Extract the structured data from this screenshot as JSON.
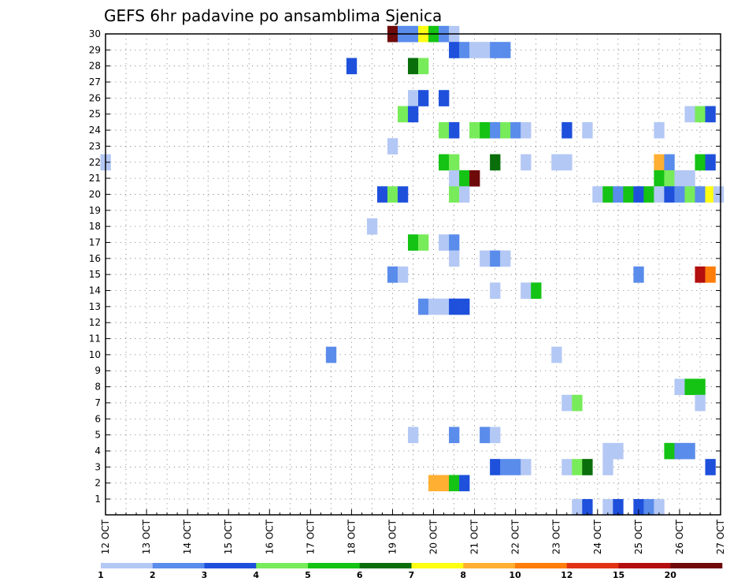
{
  "chart_data": {
    "type": "heatmap",
    "title": "GEFS 6hr padavine po ansamblima Sjenica",
    "x_ticks": [
      "12 OCT",
      "13 OCT",
      "14 OCT",
      "15 OCT",
      "16 OCT",
      "17 OCT",
      "18 OCT",
      "19 OCT",
      "20 OCT",
      "21 OCT",
      "22 OCT",
      "23 OCT",
      "24 OCT",
      "25 OCT",
      "26 OCT",
      "27 OCT"
    ],
    "y_ticks": [
      "1",
      "2",
      "3",
      "4",
      "5",
      "6",
      "7",
      "8",
      "9",
      "10",
      "11",
      "12",
      "13",
      "14",
      "15",
      "16",
      "17",
      "18",
      "19",
      "20",
      "21",
      "22",
      "23",
      "24",
      "25",
      "26",
      "27",
      "28",
      "29",
      "30"
    ],
    "xlim_days": [
      12,
      27
    ],
    "ylim_members": [
      0,
      30
    ],
    "step_hours": 6,
    "grid": true,
    "colorbar": {
      "placement": "bottom",
      "labels": [
        "1",
        "2",
        "3",
        "4",
        "5",
        "6",
        "7",
        "8",
        "10",
        "12",
        "15",
        "20"
      ],
      "colors": [
        "#b4c8f5",
        "#5a8ceb",
        "#1e50dc",
        "#78eb5a",
        "#14c314",
        "#0a6e0a",
        "#ffff14",
        "#ffaf32",
        "#ff7d0a",
        "#e13214",
        "#b40f0f",
        "#6e0a0a"
      ]
    },
    "cells": [
      {
        "member": 30,
        "day": 19.0,
        "cls": 12
      },
      {
        "member": 30,
        "day": 19.25,
        "cls": 2
      },
      {
        "member": 30,
        "day": 19.5,
        "cls": 2
      },
      {
        "member": 30,
        "day": 19.75,
        "cls": 7
      },
      {
        "member": 30,
        "day": 20.0,
        "cls": 5
      },
      {
        "member": 30,
        "day": 20.25,
        "cls": 2
      },
      {
        "member": 30,
        "day": 20.5,
        "cls": 1
      },
      {
        "member": 29,
        "day": 20.5,
        "cls": 3
      },
      {
        "member": 29,
        "day": 20.75,
        "cls": 2
      },
      {
        "member": 29,
        "day": 21.0,
        "cls": 1
      },
      {
        "member": 29,
        "day": 21.25,
        "cls": 1
      },
      {
        "member": 29,
        "day": 21.5,
        "cls": 2
      },
      {
        "member": 29,
        "day": 21.75,
        "cls": 2
      },
      {
        "member": 28,
        "day": 18.0,
        "cls": 3
      },
      {
        "member": 28,
        "day": 19.5,
        "cls": 6
      },
      {
        "member": 28,
        "day": 19.75,
        "cls": 4
      },
      {
        "member": 26,
        "day": 19.5,
        "cls": 1
      },
      {
        "member": 26,
        "day": 19.75,
        "cls": 3
      },
      {
        "member": 26,
        "day": 20.25,
        "cls": 3
      },
      {
        "member": 25,
        "day": 19.25,
        "cls": 4
      },
      {
        "member": 25,
        "day": 19.5,
        "cls": 3
      },
      {
        "member": 25,
        "day": 26.25,
        "cls": 1
      },
      {
        "member": 25,
        "day": 26.5,
        "cls": 4
      },
      {
        "member": 25,
        "day": 26.75,
        "cls": 3
      },
      {
        "member": 24,
        "day": 20.25,
        "cls": 4
      },
      {
        "member": 24,
        "day": 20.5,
        "cls": 3
      },
      {
        "member": 24,
        "day": 21.0,
        "cls": 4
      },
      {
        "member": 24,
        "day": 21.25,
        "cls": 5
      },
      {
        "member": 24,
        "day": 21.5,
        "cls": 2
      },
      {
        "member": 24,
        "day": 21.75,
        "cls": 4
      },
      {
        "member": 24,
        "day": 22.0,
        "cls": 2
      },
      {
        "member": 24,
        "day": 22.25,
        "cls": 1
      },
      {
        "member": 24,
        "day": 23.25,
        "cls": 3
      },
      {
        "member": 24,
        "day": 23.75,
        "cls": 1
      },
      {
        "member": 24,
        "day": 25.5,
        "cls": 1
      },
      {
        "member": 23,
        "day": 19.0,
        "cls": 1
      },
      {
        "member": 22,
        "day": 12.0,
        "cls": 1
      },
      {
        "member": 22,
        "day": 20.25,
        "cls": 5
      },
      {
        "member": 22,
        "day": 20.5,
        "cls": 4
      },
      {
        "member": 22,
        "day": 21.5,
        "cls": 6
      },
      {
        "member": 22,
        "day": 22.25,
        "cls": 1
      },
      {
        "member": 22,
        "day": 23.0,
        "cls": 1
      },
      {
        "member": 22,
        "day": 23.25,
        "cls": 1
      },
      {
        "member": 22,
        "day": 25.5,
        "cls": 8
      },
      {
        "member": 22,
        "day": 25.75,
        "cls": 2
      },
      {
        "member": 22,
        "day": 26.5,
        "cls": 5
      },
      {
        "member": 22,
        "day": 26.75,
        "cls": 3
      },
      {
        "member": 21,
        "day": 20.5,
        "cls": 1
      },
      {
        "member": 21,
        "day": 20.75,
        "cls": 5
      },
      {
        "member": 21,
        "day": 21.0,
        "cls": 12
      },
      {
        "member": 21,
        "day": 25.5,
        "cls": 5
      },
      {
        "member": 21,
        "day": 25.75,
        "cls": 4
      },
      {
        "member": 21,
        "day": 26.0,
        "cls": 1
      },
      {
        "member": 21,
        "day": 26.25,
        "cls": 1
      },
      {
        "member": 20,
        "day": 18.75,
        "cls": 3
      },
      {
        "member": 20,
        "day": 19.0,
        "cls": 4
      },
      {
        "member": 20,
        "day": 19.25,
        "cls": 3
      },
      {
        "member": 20,
        "day": 20.5,
        "cls": 4
      },
      {
        "member": 20,
        "day": 20.75,
        "cls": 1
      },
      {
        "member": 20,
        "day": 24.0,
        "cls": 1
      },
      {
        "member": 20,
        "day": 24.25,
        "cls": 5
      },
      {
        "member": 20,
        "day": 24.5,
        "cls": 2
      },
      {
        "member": 20,
        "day": 24.75,
        "cls": 5
      },
      {
        "member": 20,
        "day": 25.0,
        "cls": 3
      },
      {
        "member": 20,
        "day": 25.25,
        "cls": 5
      },
      {
        "member": 20,
        "day": 25.5,
        "cls": 1
      },
      {
        "member": 20,
        "day": 25.75,
        "cls": 3
      },
      {
        "member": 20,
        "day": 26.0,
        "cls": 2
      },
      {
        "member": 20,
        "day": 26.25,
        "cls": 4
      },
      {
        "member": 20,
        "day": 26.5,
        "cls": 2
      },
      {
        "member": 20,
        "day": 26.75,
        "cls": 7
      },
      {
        "member": 20,
        "day": 26.95,
        "cls": 1
      },
      {
        "member": 18,
        "day": 18.5,
        "cls": 1
      },
      {
        "member": 17,
        "day": 19.5,
        "cls": 5
      },
      {
        "member": 17,
        "day": 19.75,
        "cls": 4
      },
      {
        "member": 17,
        "day": 20.25,
        "cls": 1
      },
      {
        "member": 17,
        "day": 20.5,
        "cls": 2
      },
      {
        "member": 16,
        "day": 20.5,
        "cls": 1
      },
      {
        "member": 16,
        "day": 21.25,
        "cls": 1
      },
      {
        "member": 16,
        "day": 21.5,
        "cls": 2
      },
      {
        "member": 16,
        "day": 21.75,
        "cls": 1
      },
      {
        "member": 15,
        "day": 19.0,
        "cls": 2
      },
      {
        "member": 15,
        "day": 19.25,
        "cls": 1
      },
      {
        "member": 15,
        "day": 25.0,
        "cls": 2
      },
      {
        "member": 15,
        "day": 26.5,
        "cls": 11
      },
      {
        "member": 15,
        "day": 26.75,
        "cls": 9
      },
      {
        "member": 14,
        "day": 21.5,
        "cls": 1
      },
      {
        "member": 14,
        "day": 22.25,
        "cls": 1
      },
      {
        "member": 14,
        "day": 22.5,
        "cls": 5
      },
      {
        "member": 13,
        "day": 19.75,
        "cls": 2
      },
      {
        "member": 13,
        "day": 20.0,
        "cls": 1
      },
      {
        "member": 13,
        "day": 20.25,
        "cls": 1
      },
      {
        "member": 13,
        "day": 20.5,
        "cls": 3
      },
      {
        "member": 13,
        "day": 20.75,
        "cls": 3
      },
      {
        "member": 10,
        "day": 17.5,
        "cls": 2
      },
      {
        "member": 10,
        "day": 23.0,
        "cls": 1
      },
      {
        "member": 8,
        "day": 26.0,
        "cls": 1
      },
      {
        "member": 8,
        "day": 26.25,
        "cls": 5
      },
      {
        "member": 8,
        "day": 26.5,
        "cls": 5
      },
      {
        "member": 7,
        "day": 23.25,
        "cls": 1
      },
      {
        "member": 7,
        "day": 23.5,
        "cls": 4
      },
      {
        "member": 7,
        "day": 26.5,
        "cls": 1
      },
      {
        "member": 5,
        "day": 19.5,
        "cls": 1
      },
      {
        "member": 5,
        "day": 20.5,
        "cls": 2
      },
      {
        "member": 5,
        "day": 21.25,
        "cls": 2
      },
      {
        "member": 5,
        "day": 21.5,
        "cls": 1
      },
      {
        "member": 4,
        "day": 24.25,
        "cls": 1
      },
      {
        "member": 4,
        "day": 24.5,
        "cls": 1
      },
      {
        "member": 4,
        "day": 25.75,
        "cls": 5
      },
      {
        "member": 4,
        "day": 26.0,
        "cls": 2
      },
      {
        "member": 4,
        "day": 26.25,
        "cls": 2
      },
      {
        "member": 3,
        "day": 21.5,
        "cls": 3
      },
      {
        "member": 3,
        "day": 21.75,
        "cls": 2
      },
      {
        "member": 3,
        "day": 22.0,
        "cls": 2
      },
      {
        "member": 3,
        "day": 22.25,
        "cls": 1
      },
      {
        "member": 3,
        "day": 23.25,
        "cls": 1
      },
      {
        "member": 3,
        "day": 23.5,
        "cls": 4
      },
      {
        "member": 3,
        "day": 23.75,
        "cls": 6
      },
      {
        "member": 3,
        "day": 24.25,
        "cls": 1
      },
      {
        "member": 3,
        "day": 26.75,
        "cls": 3
      },
      {
        "member": 2,
        "day": 20.0,
        "cls": 8
      },
      {
        "member": 2,
        "day": 20.25,
        "cls": 8
      },
      {
        "member": 2,
        "day": 20.5,
        "cls": 5
      },
      {
        "member": 2,
        "day": 20.75,
        "cls": 3
      },
      {
        "member": 0.5,
        "day": 23.5,
        "cls": 1
      },
      {
        "member": 0.5,
        "day": 23.75,
        "cls": 3
      },
      {
        "member": 0.5,
        "day": 24.25,
        "cls": 1
      },
      {
        "member": 0.5,
        "day": 24.5,
        "cls": 3
      },
      {
        "member": 0.5,
        "day": 25.0,
        "cls": 3
      },
      {
        "member": 0.5,
        "day": 25.25,
        "cls": 2
      },
      {
        "member": 0.5,
        "day": 25.5,
        "cls": 1
      }
    ]
  }
}
